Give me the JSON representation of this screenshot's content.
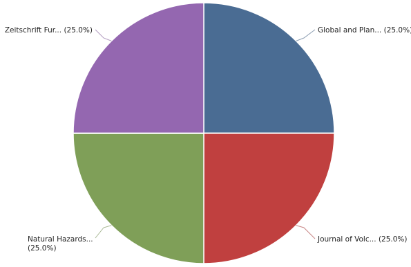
{
  "chart_data": {
    "type": "pie",
    "title": "",
    "slices": [
      {
        "label": "Global and Plan...",
        "value": 25.0,
        "percent_text": "(25.0%)",
        "color": "#4a6c93"
      },
      {
        "label": "Journal of Volc...",
        "value": 25.0,
        "percent_text": "(25.0%)",
        "color": "#c0403f"
      },
      {
        "label": "Natural Hazards...",
        "value": 25.0,
        "percent_text": "(25.0%)",
        "color": "#7f9f58"
      },
      {
        "label": "Zeitschrift Fur...",
        "value": 25.0,
        "percent_text": "(25.0%)",
        "color": "#9467b0"
      }
    ],
    "legend": "none"
  }
}
